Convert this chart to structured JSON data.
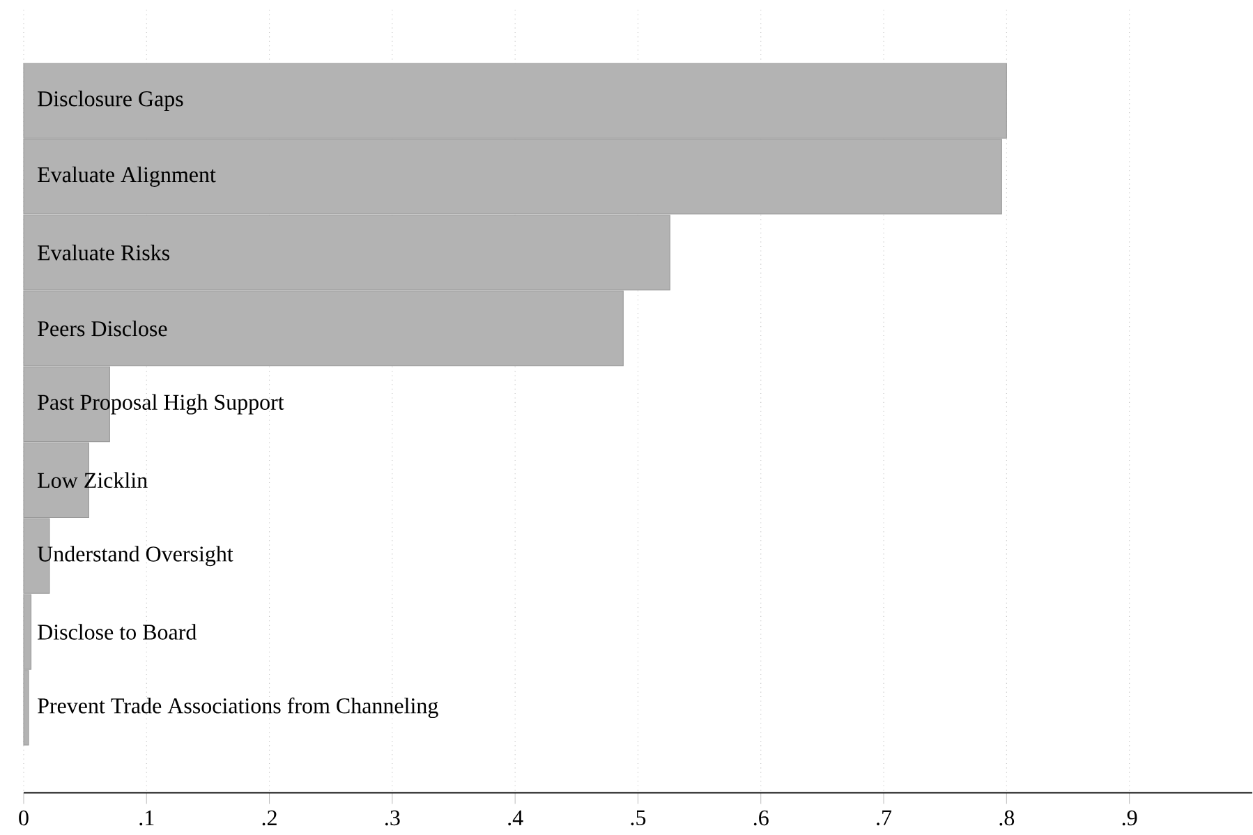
{
  "chart_data": {
    "type": "bar",
    "orientation": "horizontal",
    "categories": [
      "Disclosure Gaps",
      "Evaluate Alignment",
      "Evaluate Risks",
      "Peers Disclose",
      "Past Proposal High Support",
      "Low Zicklin",
      "Understand Oversight",
      "Disclose to Board",
      "Prevent Trade Associations from Channeling"
    ],
    "values": [
      0.8,
      0.796,
      0.526,
      0.488,
      0.07,
      0.053,
      0.021,
      0.006,
      0.004
    ],
    "color": "#b3b3b3",
    "xlim": [
      0,
      1
    ],
    "xticks": [
      0,
      {
        "value": 0.1,
        "label": ".1"
      },
      {
        "value": 0.2,
        "label": ".2"
      },
      {
        "value": 0.3,
        "label": ".3"
      },
      {
        "value": 0.4,
        "label": ".4"
      },
      {
        "value": 0.5,
        "label": ".5"
      },
      {
        "value": 0.6,
        "label": ".6"
      },
      {
        "value": 0.7,
        "label": ".7"
      },
      {
        "value": 0.8,
        "label": ".8"
      },
      {
        "value": 0.9,
        "label": ".9"
      }
    ],
    "grid": "x"
  }
}
